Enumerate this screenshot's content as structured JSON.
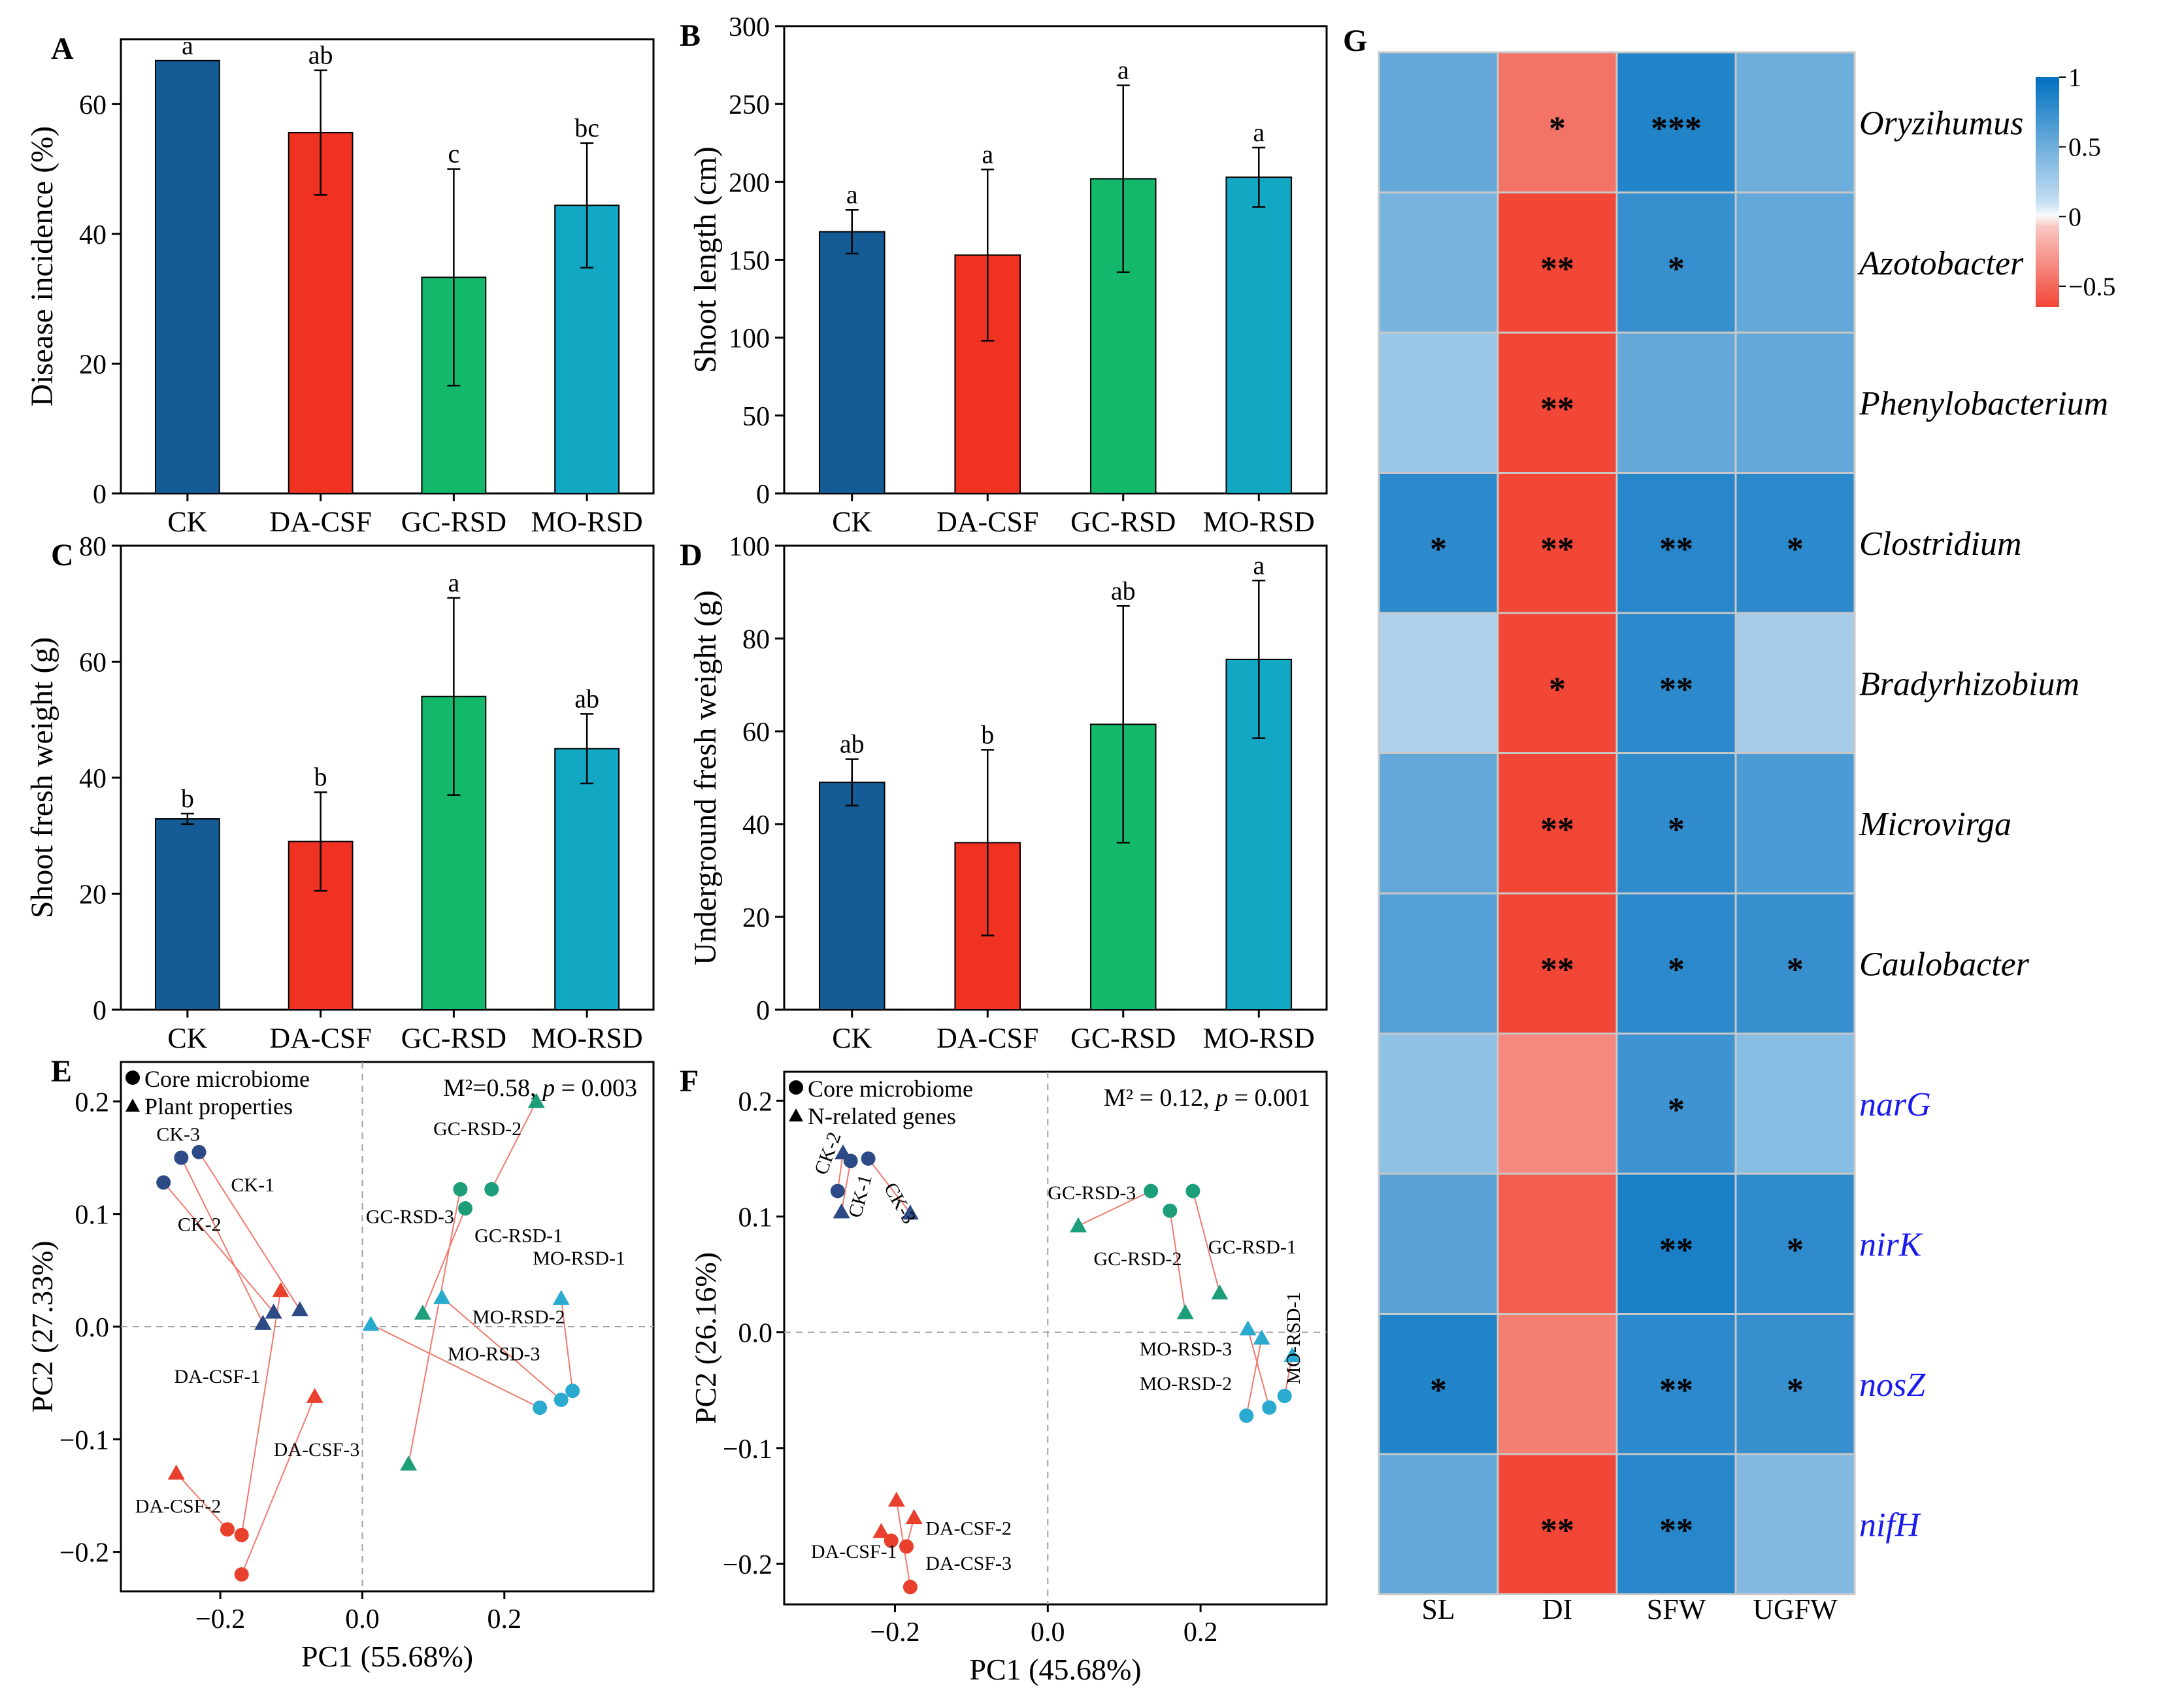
{
  "colors": {
    "ck": "#155C96",
    "dacsf": "#F03223",
    "gcrsd": "#14B86A",
    "morsd": "#12A8C4",
    "ck_pt": "#2C4A86",
    "dacsf_pt": "#E8402C",
    "gcrsd_pt": "#1D9E7A",
    "morsd_pt": "#2BAAD0",
    "link": "#F07A6E",
    "zero_line": "#A0A0A0",
    "gene_text": "#1A1AEE"
  },
  "chart_data": [
    {
      "panel": "A",
      "type": "bar",
      "categories": [
        "CK",
        "DA-CSF",
        "GC-RSD",
        "MO-RSD"
      ],
      "values": [
        66.7,
        55.6,
        33.3,
        44.4
      ],
      "errors": [
        0,
        9.6,
        16.7,
        9.6
      ],
      "letters": [
        "a",
        "ab",
        "c",
        "bc"
      ],
      "ylabel": "Disease incidence (%)",
      "ylim": [
        0,
        70
      ],
      "yticks": [
        0,
        20,
        40,
        60
      ]
    },
    {
      "panel": "B",
      "type": "bar",
      "categories": [
        "CK",
        "DA-CSF",
        "GC-RSD",
        "MO-RSD"
      ],
      "values": [
        168,
        153,
        202,
        203
      ],
      "errors": [
        14,
        55,
        60,
        19
      ],
      "letters": [
        "a",
        "a",
        "a",
        "a"
      ],
      "ylabel": "Shoot length (cm)",
      "ylim": [
        0,
        300
      ],
      "yticks": [
        0,
        50,
        100,
        150,
        200,
        250,
        300
      ]
    },
    {
      "panel": "C",
      "type": "bar",
      "categories": [
        "CK",
        "DA-CSF",
        "GC-RSD",
        "MO-RSD"
      ],
      "values": [
        32.9,
        29.0,
        54.0,
        45.0
      ],
      "errors": [
        0.9,
        8.5,
        17.0,
        6.0
      ],
      "letters": [
        "b",
        "b",
        "a",
        "ab"
      ],
      "ylabel": "Shoot fresh weight (g)",
      "ylim": [
        0,
        80
      ],
      "yticks": [
        0,
        20,
        40,
        60,
        80
      ]
    },
    {
      "panel": "D",
      "type": "bar",
      "categories": [
        "CK",
        "DA-CSF",
        "GC-RSD",
        "MO-RSD"
      ],
      "values": [
        49,
        36,
        61.5,
        75.5
      ],
      "errors": [
        5,
        20,
        25.5,
        17
      ],
      "letters": [
        "ab",
        "b",
        "ab",
        "a"
      ],
      "ylabel": "Underground fresh weight (g)",
      "ylim": [
        0,
        100
      ],
      "yticks": [
        0,
        20,
        40,
        60,
        80,
        100
      ]
    },
    {
      "panel": "E",
      "type": "scatter",
      "legend": [
        "Core microbiome",
        "Plant properties"
      ],
      "stat": {
        "m2": "M²=0.58, ",
        "p_label": "p",
        "p_value": " = 0.003"
      },
      "xlabel": "PC1 (55.68%)",
      "ylabel": "PC2 (27.33%)",
      "xlim": [
        -0.34,
        0.41
      ],
      "ylim": [
        -0.235,
        0.235
      ],
      "xticks": [
        -0.2,
        0.0,
        0.2
      ],
      "xtick_labels": [
        "−0.2",
        "0.0",
        "0.2"
      ],
      "yticks": [
        -0.2,
        -0.1,
        0.0,
        0.1,
        0.2
      ],
      "ytick_labels": [
        "−0.2",
        "−0.1",
        "0.0",
        "0.1",
        "0.2"
      ],
      "pairs": [
        {
          "label": "CK-1",
          "g": "ck",
          "circle": [
            -0.23,
            0.155
          ],
          "tri": [
            -0.088,
            0.015
          ],
          "label_at": [
            -0.185,
            0.12
          ]
        },
        {
          "label": "CK-2",
          "g": "ck",
          "circle": [
            -0.28,
            0.128
          ],
          "tri": [
            -0.125,
            0.013
          ],
          "label_at": [
            -0.26,
            0.085
          ]
        },
        {
          "label": "CK-3",
          "g": "ck",
          "circle": [
            -0.255,
            0.15
          ],
          "tri": [
            -0.14,
            0.003
          ],
          "label_at": [
            -0.29,
            0.165
          ]
        },
        {
          "label": "DA-CSF-1",
          "g": "dacsf",
          "circle": [
            -0.17,
            -0.185
          ],
          "tri": [
            -0.115,
            0.032
          ],
          "label_at": [
            -0.265,
            -0.05
          ]
        },
        {
          "label": "DA-CSF-2",
          "g": "dacsf",
          "circle": [
            -0.19,
            -0.18
          ],
          "tri": [
            -0.262,
            -0.13
          ],
          "label_at": [
            -0.32,
            -0.165
          ]
        },
        {
          "label": "DA-CSF-3",
          "g": "dacsf",
          "circle": [
            -0.17,
            -0.22
          ],
          "tri": [
            -0.067,
            -0.062
          ],
          "label_at": [
            -0.125,
            -0.115
          ]
        },
        {
          "label": "GC-RSD-1",
          "g": "gcrsd",
          "circle": [
            0.145,
            0.105
          ],
          "tri": [
            0.085,
            0.012
          ],
          "label_at": [
            0.158,
            0.075
          ]
        },
        {
          "label": "GC-RSD-2",
          "g": "gcrsd",
          "circle": [
            0.182,
            0.122
          ],
          "tri": [
            0.245,
            0.2
          ],
          "label_at": [
            0.1,
            0.17
          ]
        },
        {
          "label": "GC-RSD-3",
          "g": "gcrsd",
          "circle": [
            0.138,
            0.122
          ],
          "tri": [
            0.065,
            -0.122
          ],
          "label_at": [
            0.005,
            0.092
          ]
        },
        {
          "label": "MO-RSD-1",
          "g": "morsd",
          "circle": [
            0.296,
            -0.057
          ],
          "tri": [
            0.28,
            0.025
          ],
          "label_at": [
            0.24,
            0.055
          ]
        },
        {
          "label": "MO-RSD-2",
          "g": "morsd",
          "circle": [
            0.28,
            -0.065
          ],
          "tri": [
            0.112,
            0.026
          ],
          "label_at": [
            0.155,
            0.003
          ]
        },
        {
          "label": "MO-RSD-3",
          "g": "morsd",
          "circle": [
            0.25,
            -0.072
          ],
          "tri": [
            0.012,
            0.002
          ],
          "label_at": [
            0.12,
            -0.03
          ]
        }
      ]
    },
    {
      "panel": "F",
      "type": "scatter",
      "legend": [
        "Core microbiome",
        "N-related genes"
      ],
      "stat": {
        "m2": "M² = 0.12,  ",
        "p_label": "p",
        "p_value": " = 0.001"
      },
      "xlabel": "PC1 (45.68%)",
      "ylabel": "PC2 (26.16%)",
      "xlim": [
        -0.345,
        0.365
      ],
      "ylim": [
        -0.235,
        0.225
      ],
      "xticks": [
        -0.2,
        0.0,
        0.2
      ],
      "xtick_labels": [
        "−0.2",
        "0.0",
        "0.2"
      ],
      "yticks": [
        -0.2,
        -0.1,
        0.0,
        0.1,
        0.2
      ],
      "ytick_labels": [
        "−0.2",
        "−0.1",
        "0.0",
        "0.1",
        "0.2"
      ],
      "pairs": [
        {
          "label": "CK-1",
          "g": "ck",
          "circle": [
            -0.258,
            0.148
          ],
          "tri": [
            -0.27,
            0.104
          ],
          "label_at": [
            -0.245,
            0.098
          ],
          "rot": -75
        },
        {
          "label": "CK-2",
          "g": "ck",
          "circle": [
            -0.275,
            0.122
          ],
          "tri": [
            -0.268,
            0.155
          ],
          "label_at": [
            -0.29,
            0.135
          ],
          "rot": -70
        },
        {
          "label": "CK-3",
          "g": "ck",
          "circle": [
            -0.235,
            0.15
          ],
          "tri": [
            -0.18,
            0.103
          ],
          "label_at": [
            -0.215,
            0.125
          ],
          "rot": 60
        },
        {
          "label": "DA-CSF-1",
          "g": "dacsf",
          "circle": [
            -0.205,
            -0.18
          ],
          "tri": [
            -0.218,
            -0.172
          ],
          "label_at": [
            -0.31,
            -0.195
          ]
        },
        {
          "label": "DA-CSF-2",
          "g": "dacsf",
          "circle": [
            -0.185,
            -0.185
          ],
          "tri": [
            -0.175,
            -0.16
          ],
          "label_at": [
            -0.16,
            -0.175
          ]
        },
        {
          "label": "DA-CSF-3",
          "g": "dacsf",
          "circle": [
            -0.18,
            -0.22
          ],
          "tri": [
            -0.198,
            -0.145
          ],
          "label_at": [
            -0.16,
            -0.205
          ]
        },
        {
          "label": "GC-RSD-1",
          "g": "gcrsd",
          "circle": [
            0.19,
            0.122
          ],
          "tri": [
            0.225,
            0.034
          ],
          "label_at": [
            0.21,
            0.068
          ]
        },
        {
          "label": "GC-RSD-2",
          "g": "gcrsd",
          "circle": [
            0.16,
            0.105
          ],
          "tri": [
            0.18,
            0.017
          ],
          "label_at": [
            0.06,
            0.058
          ]
        },
        {
          "label": "GC-RSD-3",
          "g": "gcrsd",
          "circle": [
            0.135,
            0.122
          ],
          "tri": [
            0.04,
            0.092
          ],
          "label_at": [
            0.0,
            0.115
          ]
        },
        {
          "label": "MO-RSD-1",
          "g": "morsd",
          "circle": [
            0.31,
            -0.055
          ],
          "tri": [
            0.32,
            -0.02
          ],
          "label_at": [
            0.33,
            -0.045
          ],
          "rot": -90
        },
        {
          "label": "MO-RSD-2",
          "g": "morsd",
          "circle": [
            0.26,
            -0.072
          ],
          "tri": [
            0.28,
            -0.005
          ],
          "label_at": [
            0.12,
            -0.05
          ]
        },
        {
          "label": "MO-RSD-3",
          "g": "morsd",
          "circle": [
            0.29,
            -0.065
          ],
          "tri": [
            0.262,
            0.003
          ],
          "label_at": [
            0.12,
            -0.02
          ]
        }
      ]
    },
    {
      "panel": "G",
      "type": "heatmap",
      "columns": [
        "SL",
        "DI",
        "SFW",
        "UGFW"
      ],
      "rows": [
        {
          "name": "Oryzihumus",
          "gene": false
        },
        {
          "name": "Azotobacter",
          "gene": false
        },
        {
          "name": "Phenylobacterium",
          "gene": false
        },
        {
          "name": "Clostridium",
          "gene": false
        },
        {
          "name": "Bradyrhizobium",
          "gene": false
        },
        {
          "name": "Microvirga",
          "gene": false
        },
        {
          "name": "Caulobacter",
          "gene": false
        },
        {
          "name": "narG",
          "gene": true
        },
        {
          "name": "nirK",
          "gene": true
        },
        {
          "name": "nosZ",
          "gene": true
        },
        {
          "name": "nifH",
          "gene": true
        }
      ],
      "values": [
        [
          0.55,
          -0.45,
          0.85,
          0.5
        ],
        [
          0.45,
          -0.8,
          0.75,
          0.55
        ],
        [
          0.3,
          -0.8,
          0.55,
          0.55
        ],
        [
          0.8,
          -0.85,
          0.82,
          0.8
        ],
        [
          0.2,
          -0.75,
          0.8,
          0.25
        ],
        [
          0.55,
          -0.8,
          0.78,
          0.65
        ],
        [
          0.62,
          -0.8,
          0.8,
          0.75
        ],
        [
          0.35,
          -0.35,
          0.72,
          0.38
        ],
        [
          0.6,
          -0.55,
          0.88,
          0.78
        ],
        [
          0.85,
          -0.4,
          0.8,
          0.75
        ],
        [
          0.55,
          -0.8,
          0.82,
          0.4
        ]
      ],
      "stars": [
        [
          "",
          "*",
          "***",
          ""
        ],
        [
          "",
          "**",
          "*",
          ""
        ],
        [
          "",
          "**",
          "",
          ""
        ],
        [
          "*",
          "**",
          "**",
          "*"
        ],
        [
          "",
          "*",
          "**",
          ""
        ],
        [
          "",
          "**",
          "*",
          ""
        ],
        [
          "",
          "**",
          "*",
          "*"
        ],
        [
          "",
          "",
          "*",
          ""
        ],
        [
          "",
          "",
          "**",
          "*"
        ],
        [
          "*",
          "",
          "**",
          "*"
        ],
        [
          "",
          "**",
          "**",
          ""
        ]
      ],
      "colorbar": {
        "ticks": [
          1,
          0.5,
          0,
          -0.5
        ],
        "labels": [
          "1",
          "0.5",
          "0",
          "−0.5"
        ],
        "range": [
          -0.65,
          1
        ]
      }
    }
  ]
}
